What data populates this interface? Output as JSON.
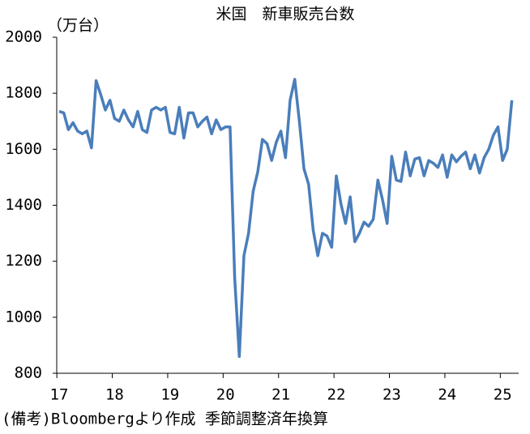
{
  "chart_data": {
    "type": "line",
    "title": "米国　新車販売台数",
    "y_unit": "（万台）",
    "note": "(備考)Bloombergより作成 季節調整済年換算",
    "color": "#4a7ebb",
    "categories": [
      "17",
      null,
      null,
      null,
      null,
      null,
      null,
      null,
      null,
      null,
      null,
      null,
      "18",
      null,
      null,
      null,
      null,
      null,
      null,
      null,
      null,
      null,
      null,
      null,
      "19",
      null,
      null,
      null,
      null,
      null,
      null,
      null,
      null,
      null,
      null,
      null,
      "20",
      null,
      null,
      null,
      null,
      null,
      null,
      null,
      null,
      null,
      null,
      null,
      "21",
      null,
      null,
      null,
      null,
      null,
      null,
      null,
      null,
      null,
      null,
      null,
      "22",
      null,
      null,
      null,
      null,
      null,
      null,
      null,
      null,
      null,
      null,
      null,
      "23",
      null,
      null,
      null,
      null,
      null,
      null,
      null,
      null,
      null,
      null,
      null,
      "24",
      null,
      null,
      null,
      null,
      null,
      null,
      null,
      null,
      null,
      null,
      null,
      "25",
      null,
      null
    ],
    "values": [
      1735,
      1730,
      1670,
      1695,
      1665,
      1655,
      1665,
      1605,
      1845,
      1795,
      1740,
      1775,
      1710,
      1700,
      1740,
      1705,
      1680,
      1735,
      1670,
      1660,
      1740,
      1750,
      1740,
      1750,
      1660,
      1655,
      1750,
      1640,
      1730,
      1730,
      1680,
      1700,
      1715,
      1655,
      1705,
      1670,
      1680,
      1680,
      1140,
      860,
      1220,
      1300,
      1450,
      1520,
      1635,
      1620,
      1560,
      1625,
      1665,
      1570,
      1775,
      1850,
      1700,
      1530,
      1475,
      1310,
      1220,
      1300,
      1290,
      1250,
      1505,
      1405,
      1335,
      1430,
      1270,
      1300,
      1340,
      1325,
      1350,
      1490,
      1420,
      1335,
      1575,
      1490,
      1485,
      1590,
      1505,
      1565,
      1570,
      1505,
      1560,
      1550,
      1535,
      1580,
      1500,
      1580,
      1555,
      1575,
      1590,
      1530,
      1580,
      1515,
      1570,
      1600,
      1650,
      1680,
      1560,
      1600,
      1775
    ],
    "ylim": [
      800,
      2000
    ],
    "yticks": [
      800,
      1000,
      1200,
      1400,
      1600,
      1800,
      2000
    ],
    "grid": false
  }
}
